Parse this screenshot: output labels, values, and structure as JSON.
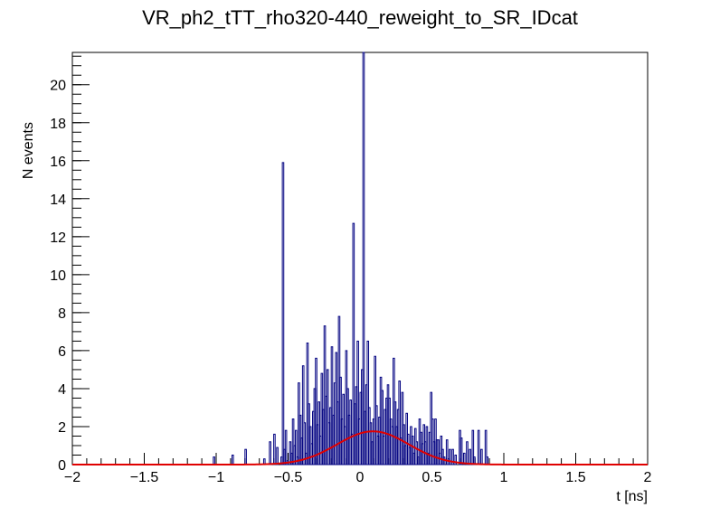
{
  "chart_data": {
    "type": "histogram",
    "title": "VR_ph2_tTT_rho320-440_reweight_to_SR_IDcat",
    "xlabel": "t [ns]",
    "ylabel": "N events",
    "xlim": [
      -2,
      2
    ],
    "ylim": [
      0,
      21.7
    ],
    "grid": false,
    "x_ticks": [
      -2,
      -1.5,
      -1,
      -0.5,
      0,
      0.5,
      1,
      1.5,
      2
    ],
    "x_tick_labels": [
      "−2",
      "−1.5",
      "−1",
      "−0.5",
      "0",
      "0.5",
      "1",
      "1.5",
      "2"
    ],
    "y_ticks": [
      0,
      2,
      4,
      6,
      8,
      10,
      12,
      14,
      16,
      18,
      20
    ],
    "y_tick_labels": [
      "0",
      "2",
      "4",
      "6",
      "8",
      "10",
      "12",
      "14",
      "16",
      "18",
      "20"
    ],
    "bin_width": 0.01,
    "series": [
      {
        "name": "histogram",
        "color": "#000080",
        "bins": [
          [
            -1.02,
            0.4
          ],
          [
            -0.89,
            0.5
          ],
          [
            -0.8,
            0.8
          ],
          [
            -0.67,
            0.3
          ],
          [
            -0.63,
            1.2
          ],
          [
            -0.6,
            1.6
          ],
          [
            -0.58,
            0.9
          ],
          [
            -0.55,
            0.4
          ],
          [
            -0.54,
            15.9
          ],
          [
            -0.53,
            0.8
          ],
          [
            -0.52,
            1.8
          ],
          [
            -0.51,
            0.2
          ],
          [
            -0.49,
            1.2
          ],
          [
            -0.48,
            0.6
          ],
          [
            -0.47,
            2.4
          ],
          [
            -0.46,
            1.0
          ],
          [
            -0.45,
            1.8
          ],
          [
            -0.44,
            0.4
          ],
          [
            -0.43,
            4.3
          ],
          [
            -0.42,
            2.6
          ],
          [
            -0.41,
            1.4
          ],
          [
            -0.4,
            5.2
          ],
          [
            -0.39,
            2.2
          ],
          [
            -0.38,
            0.6
          ],
          [
            -0.37,
            6.4
          ],
          [
            -0.36,
            3.2
          ],
          [
            -0.35,
            2.0
          ],
          [
            -0.34,
            1.1
          ],
          [
            -0.33,
            2.8
          ],
          [
            -0.32,
            4.0
          ],
          [
            -0.31,
            5.6
          ],
          [
            -0.3,
            2.1
          ],
          [
            -0.29,
            3.3
          ],
          [
            -0.28,
            1.5
          ],
          [
            -0.27,
            4.8
          ],
          [
            -0.26,
            2.9
          ],
          [
            -0.25,
            7.3
          ],
          [
            -0.24,
            3.6
          ],
          [
            -0.23,
            5.0
          ],
          [
            -0.22,
            2.2
          ],
          [
            -0.21,
            3.0
          ],
          [
            -0.2,
            6.2
          ],
          [
            -0.19,
            2.6
          ],
          [
            -0.18,
            4.3
          ],
          [
            -0.17,
            5.9
          ],
          [
            -0.16,
            3.3
          ],
          [
            -0.15,
            7.8
          ],
          [
            -0.14,
            4.6
          ],
          [
            -0.13,
            2.4
          ],
          [
            -0.12,
            3.7
          ],
          [
            -0.11,
            2.0
          ],
          [
            -0.1,
            6.0
          ],
          [
            -0.09,
            4.0
          ],
          [
            -0.08,
            2.6
          ],
          [
            -0.07,
            3.4
          ],
          [
            -0.06,
            1.6
          ],
          [
            -0.05,
            12.7
          ],
          [
            -0.04,
            3.2
          ],
          [
            -0.03,
            4.1
          ],
          [
            -0.02,
            6.5
          ],
          [
            -0.01,
            2.4
          ],
          [
            0.0,
            3.8
          ],
          [
            0.01,
            5.0
          ],
          [
            0.02,
            21.7
          ],
          [
            0.03,
            2.8
          ],
          [
            0.04,
            4.2
          ],
          [
            0.05,
            6.5
          ],
          [
            0.06,
            3.0
          ],
          [
            0.07,
            2.2
          ],
          [
            0.08,
            1.2
          ],
          [
            0.09,
            2.4
          ],
          [
            0.1,
            5.7
          ],
          [
            0.11,
            3.1
          ],
          [
            0.12,
            1.5
          ],
          [
            0.13,
            2.5
          ],
          [
            0.14,
            4.6
          ],
          [
            0.15,
            3.9
          ],
          [
            0.16,
            1.5
          ],
          [
            0.17,
            2.9
          ],
          [
            0.18,
            3.5
          ],
          [
            0.19,
            4.2
          ],
          [
            0.2,
            3.5
          ],
          [
            0.21,
            2.4
          ],
          [
            0.22,
            2.0
          ],
          [
            0.23,
            5.6
          ],
          [
            0.24,
            3.3
          ],
          [
            0.25,
            2.0
          ],
          [
            0.26,
            2.9
          ],
          [
            0.27,
            4.4
          ],
          [
            0.28,
            1.4
          ],
          [
            0.29,
            3.8
          ],
          [
            0.3,
            2.1
          ],
          [
            0.31,
            1.0
          ],
          [
            0.32,
            2.7
          ],
          [
            0.33,
            1.6
          ],
          [
            0.34,
            0.9
          ],
          [
            0.35,
            2.0
          ],
          [
            0.36,
            1.5
          ],
          [
            0.37,
            0.6
          ],
          [
            0.38,
            1.9
          ],
          [
            0.39,
            1.2
          ],
          [
            0.4,
            0.4
          ],
          [
            0.41,
            2.4
          ],
          [
            0.42,
            1.7
          ],
          [
            0.43,
            1.1
          ],
          [
            0.44,
            2.1
          ],
          [
            0.45,
            1.2
          ],
          [
            0.46,
            2.0
          ],
          [
            0.47,
            0.6
          ],
          [
            0.48,
            1.7
          ],
          [
            0.49,
            3.8
          ],
          [
            0.5,
            2.4
          ],
          [
            0.51,
            1.2
          ],
          [
            0.52,
            2.4
          ],
          [
            0.53,
            1.3
          ],
          [
            0.54,
            1.3
          ],
          [
            0.55,
            0.6
          ],
          [
            0.56,
            1.5
          ],
          [
            0.57,
            0.8
          ],
          [
            0.58,
            0.4
          ],
          [
            0.6,
            1.3
          ],
          [
            0.61,
            0.3
          ],
          [
            0.62,
            0.8
          ],
          [
            0.64,
            0.8
          ],
          [
            0.66,
            0.5
          ],
          [
            0.69,
            1.8
          ],
          [
            0.7,
            1.4
          ],
          [
            0.72,
            0.6
          ],
          [
            0.74,
            1.2
          ],
          [
            0.76,
            0.8
          ],
          [
            0.78,
            1.8
          ],
          [
            0.79,
            0.4
          ],
          [
            0.82,
            1.8
          ],
          [
            0.84,
            0.8
          ],
          [
            0.87,
            1.8
          ],
          [
            0.88,
            0.4
          ]
        ]
      },
      {
        "name": "gaussian fit",
        "type": "line",
        "color": "#e00000",
        "function": "gaussian",
        "amplitude": 1.75,
        "mean": 0.09,
        "sigma": 0.25
      }
    ]
  }
}
